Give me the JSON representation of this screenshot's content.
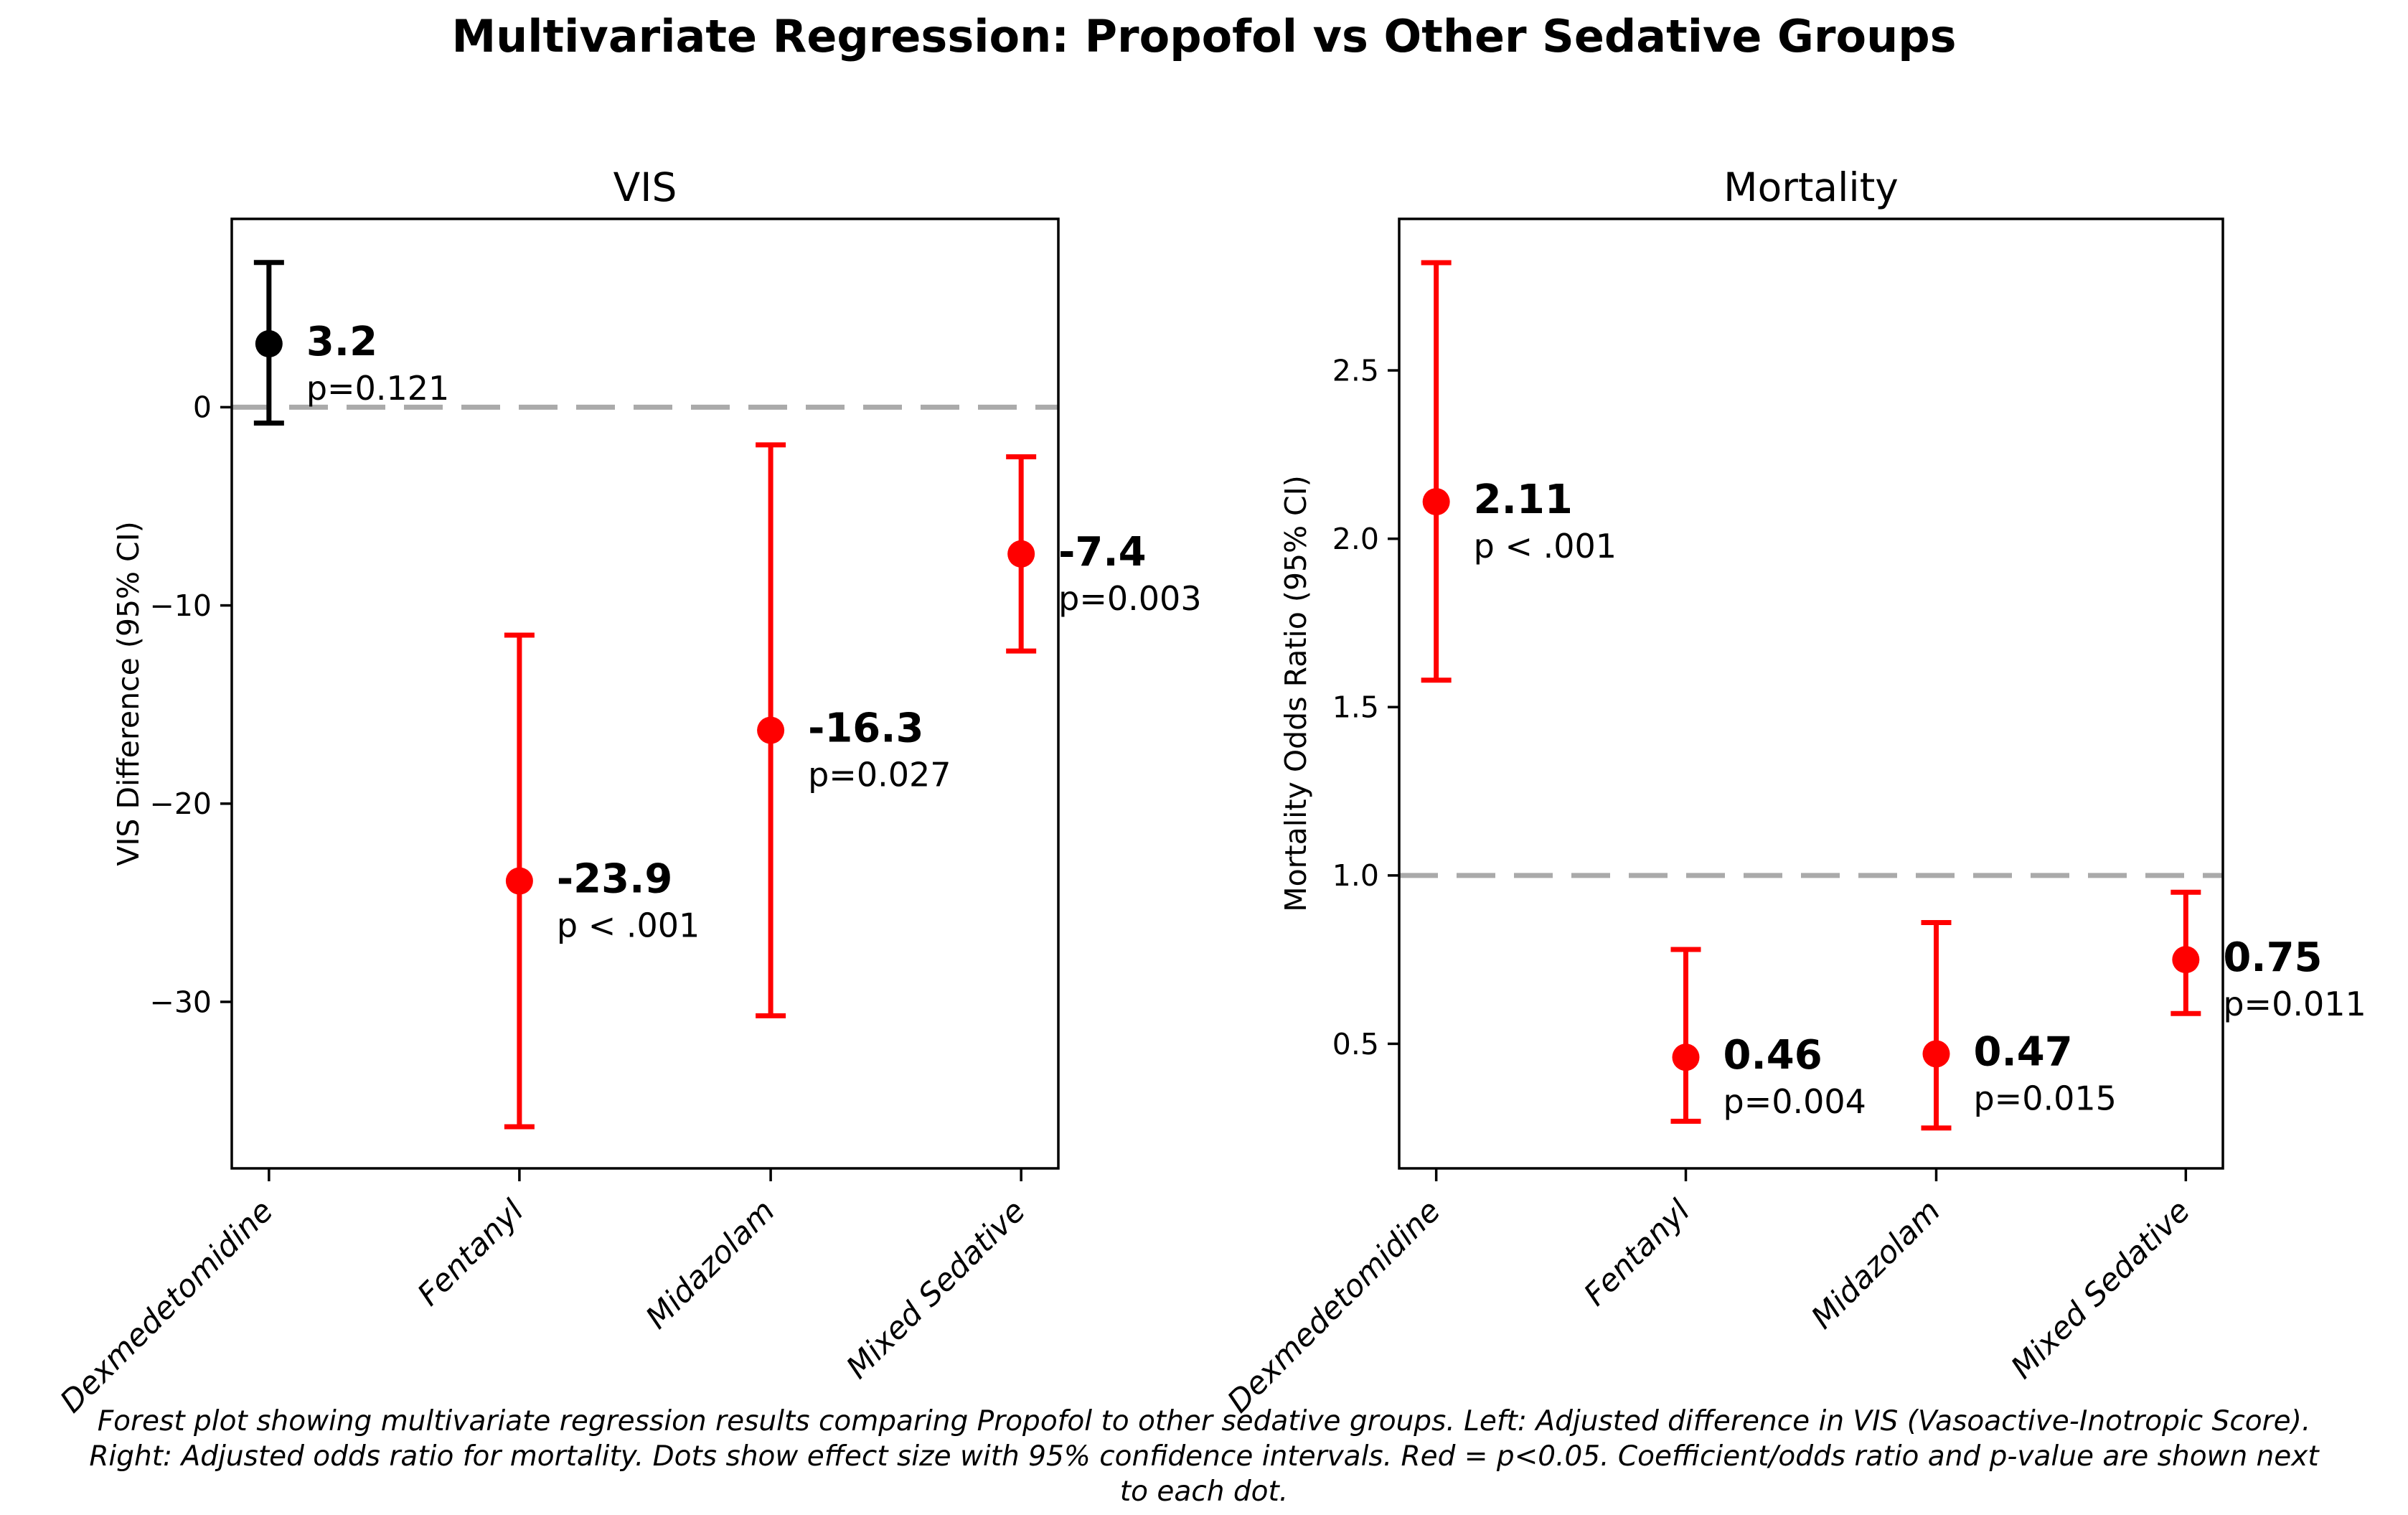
{
  "title": "Multivariate Regression: Propofol vs Other Sedative Groups",
  "caption": {
    "lines": [
      "Forest plot showing multivariate regression results comparing Propofol to other sedative groups. Left: Adjusted difference in VIS (Vasoactive-Inotropic Score).",
      "Right: Adjusted odds ratio for mortality. Dots show effect size with 95% confidence intervals. Red = p<0.05. Coefficient/odds ratio and p-value are shown next",
      "to each dot."
    ]
  },
  "colors": {
    "significant": "#ff0000",
    "nonsignificant": "#000000",
    "reference_line": "#aaaaaa",
    "axis": "#000000"
  },
  "chart_data": [
    {
      "type": "scatter",
      "title": "VIS",
      "ylabel": "VIS Difference (95% CI)",
      "xlabel": "",
      "grid": false,
      "legend": false,
      "categories": [
        "Dexmedetomidine",
        "Fentanyl",
        "Midazolam",
        "Mixed Sedative"
      ],
      "ylim": [
        -38.4,
        9.5
      ],
      "yticks": [
        0,
        -10,
        -20,
        -30
      ],
      "ytick_labels": [
        "0",
        "−10",
        "−20",
        "−30"
      ],
      "reference_line": 0,
      "points": [
        {
          "category": "Dexmedetomidine",
          "value": 3.2,
          "label": "3.2",
          "ci_low": -0.8,
          "ci_high": 7.3,
          "p_label": "p=0.121",
          "significant": false
        },
        {
          "category": "Fentanyl",
          "value": -23.9,
          "label": "-23.9",
          "ci_low": -36.3,
          "ci_high": -11.5,
          "p_label": "p < .001",
          "significant": true
        },
        {
          "category": "Midazolam",
          "value": -16.3,
          "label": "-16.3",
          "ci_low": -30.7,
          "ci_high": -1.9,
          "p_label": "p=0.027",
          "significant": true
        },
        {
          "category": "Mixed Sedative",
          "value": -7.4,
          "label": "-7.4",
          "ci_low": -12.3,
          "ci_high": -2.5,
          "p_label": "p=0.003",
          "significant": true
        }
      ]
    },
    {
      "type": "scatter",
      "title": "Mortality",
      "ylabel": "Mortality Odds Ratio (95% CI)",
      "xlabel": "",
      "grid": false,
      "legend": false,
      "categories": [
        "Dexmedetomidine",
        "Fentanyl",
        "Midazolam",
        "Mixed Sedative"
      ],
      "ylim": [
        0.13,
        2.95
      ],
      "yticks": [
        2.5,
        2.0,
        1.5,
        1.0,
        0.5
      ],
      "ytick_labels": [
        "2.5",
        "2.0",
        "1.5",
        "1.0",
        "0.5"
      ],
      "reference_line": 1.0,
      "points": [
        {
          "category": "Dexmedetomidine",
          "value": 2.11,
          "label": "2.11",
          "ci_low": 1.58,
          "ci_high": 2.82,
          "p_label": "p < .001",
          "significant": true
        },
        {
          "category": "Fentanyl",
          "value": 0.46,
          "label": "0.46",
          "ci_low": 0.27,
          "ci_high": 0.78,
          "p_label": "p=0.004",
          "significant": true
        },
        {
          "category": "Midazolam",
          "value": 0.47,
          "label": "0.47",
          "ci_low": 0.25,
          "ci_high": 0.86,
          "p_label": "p=0.015",
          "significant": true
        },
        {
          "category": "Mixed Sedative",
          "value": 0.75,
          "label": "0.75",
          "ci_low": 0.59,
          "ci_high": 0.95,
          "p_label": "p=0.011",
          "significant": true
        }
      ]
    }
  ]
}
